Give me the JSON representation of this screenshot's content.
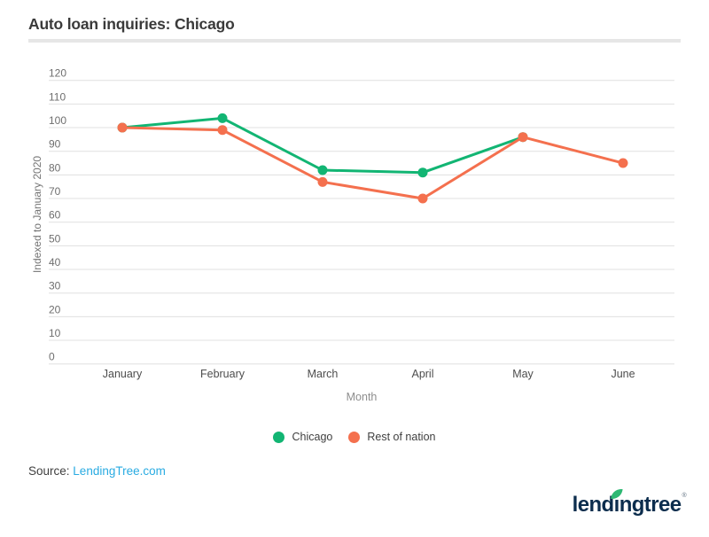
{
  "page": {
    "title": "Auto loan inquiries: Chicago",
    "source_label": "Source:",
    "source_link": "LendingTree.com"
  },
  "chart_data": {
    "type": "line",
    "title": "Auto loan inquiries: Chicago",
    "categories": [
      "January",
      "February",
      "March",
      "April",
      "May",
      "June"
    ],
    "series": [
      {
        "name": "Chicago",
        "color": "#12b573",
        "values": [
          100,
          104,
          82,
          81,
          96,
          null
        ]
      },
      {
        "name": "Rest of nation",
        "color": "#f4704e",
        "values": [
          100,
          99,
          77,
          70,
          96,
          85
        ]
      }
    ],
    "xlabel": "Month",
    "ylabel": "Indexed to January 2020",
    "ylim": [
      0,
      120
    ],
    "ytick_step": 10,
    "grid": true,
    "legend_position": "bottom"
  },
  "logo": {
    "pre": "lend",
    "i": "ı",
    "post": "ngtree",
    "reg": "®"
  },
  "colors": {
    "chicago_green": "#12b573",
    "nation_orange": "#f4704e",
    "link_blue": "#29abe2",
    "logo_navy": "#0c2d4d",
    "leaf_green": "#2eb873",
    "gridline_gray": "#e0e0e0"
  }
}
